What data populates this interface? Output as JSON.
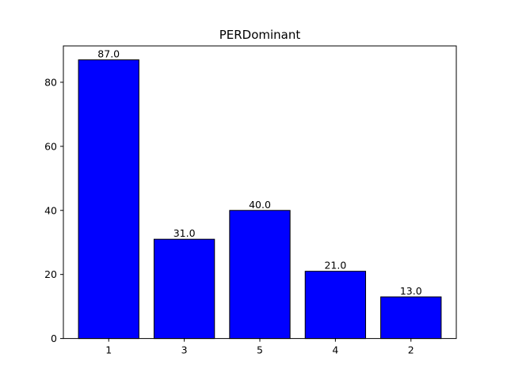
{
  "chart_data": {
    "type": "bar",
    "title": "PERDominant",
    "xlabel": "",
    "ylabel": "",
    "categories": [
      "1",
      "3",
      "5",
      "4",
      "2"
    ],
    "values": [
      87.0,
      31.0,
      40.0,
      21.0,
      13.0
    ],
    "data_labels": [
      "87.0",
      "31.0",
      "40.0",
      "21.0",
      "13.0"
    ],
    "ylim": [
      0,
      91.35
    ],
    "yticks": [
      0,
      20,
      40,
      60,
      80
    ],
    "ytick_labels": [
      "0",
      "20",
      "40",
      "60",
      "80"
    ],
    "bar_color": "#0000ff",
    "bar_edge_color": "#000000",
    "grid": false,
    "legend": "none"
  }
}
